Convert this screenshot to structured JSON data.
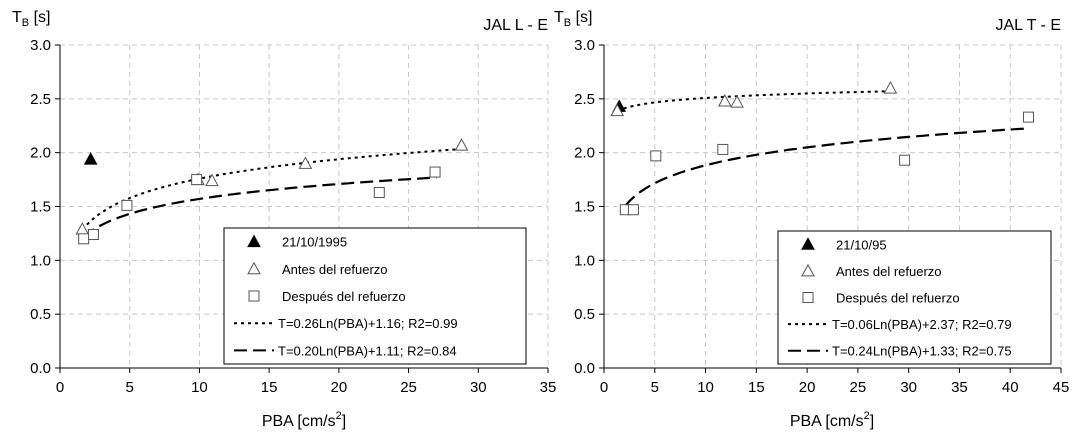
{
  "chart_data": [
    {
      "type": "scatter",
      "title": "JAL L - E",
      "ylabel_main": "T",
      "ylabel_sub": "B",
      "ylabel_unit": " [s]",
      "xlabel_main": "PBA [cm/s",
      "xlabel_sup": "2",
      "xlabel_end": "]",
      "xlim": [
        0,
        35
      ],
      "ylim": [
        0,
        3
      ],
      "xticks": [
        "0",
        "5",
        "10",
        "15",
        "20",
        "25",
        "30",
        "35"
      ],
      "yticks": [
        "0.0",
        "0.5",
        "1.0",
        "1.5",
        "2.0",
        "2.5",
        "3.0"
      ],
      "grid": true,
      "legend_position": "bottom-right",
      "series": [
        {
          "name": "21/10/1995",
          "marker": "filled-triangle",
          "points": [
            [
              2.2,
              1.94
            ]
          ]
        },
        {
          "name": "Antes del refuerzo",
          "marker": "open-triangle",
          "points": [
            [
              1.6,
              1.29
            ],
            [
              9.9,
              1.75
            ],
            [
              10.9,
              1.74
            ],
            [
              17.6,
              1.9
            ],
            [
              28.8,
              2.07
            ]
          ]
        },
        {
          "name": "Después del refuerzo",
          "marker": "open-square",
          "points": [
            [
              1.7,
              1.2
            ],
            [
              2.4,
              1.24
            ],
            [
              4.8,
              1.51
            ],
            [
              9.8,
              1.75
            ],
            [
              22.9,
              1.63
            ],
            [
              26.9,
              1.82
            ]
          ]
        }
      ],
      "fits": [
        {
          "name": "T=0.26Ln(PBA)+1.16; R2=0.99",
          "a": 0.26,
          "b": 1.16,
          "xrange": [
            1.6,
            28.8
          ],
          "dash": "short"
        },
        {
          "name": "T=0.20Ln(PBA)+1.11; R2=0.84",
          "a": 0.2,
          "b": 1.11,
          "xrange": [
            1.7,
            27
          ],
          "dash": "long"
        }
      ]
    },
    {
      "type": "scatter",
      "title": "JAL T - E",
      "ylabel_main": "T",
      "ylabel_sub": "B",
      "ylabel_unit": " [s]",
      "xlabel_main": "PBA [cm/s",
      "xlabel_sup": "2",
      "xlabel_end": "]",
      "xlim": [
        0,
        45
      ],
      "ylim": [
        0,
        3
      ],
      "xticks": [
        "0",
        "5",
        "10",
        "15",
        "20",
        "25",
        "30",
        "35",
        "40",
        "45"
      ],
      "yticks": [
        "0.0",
        "0.5",
        "1.0",
        "1.5",
        "2.0",
        "2.5",
        "3.0"
      ],
      "grid": true,
      "legend_position": "bottom-right",
      "series": [
        {
          "name": "21/10/95",
          "marker": "filled-triangle",
          "points": [
            [
              1.5,
              2.43
            ]
          ]
        },
        {
          "name": "Antes del refuerzo",
          "marker": "open-triangle",
          "points": [
            [
              1.3,
              2.39
            ],
            [
              11.9,
              2.48
            ],
            [
              13.1,
              2.47
            ],
            [
              28.2,
              2.6
            ]
          ]
        },
        {
          "name": "Después del refuerzo",
          "marker": "open-square",
          "points": [
            [
              2.1,
              1.47
            ],
            [
              2.9,
              1.47
            ],
            [
              5.1,
              1.97
            ],
            [
              11.7,
              2.03
            ],
            [
              29.6,
              1.93
            ],
            [
              41.8,
              2.33
            ]
          ]
        }
      ],
      "fits": [
        {
          "name": "T=0.06Ln(PBA)+2.37; R2=0.79",
          "a": 0.06,
          "b": 2.37,
          "xrange": [
            1.3,
            28.2
          ],
          "dash": "short"
        },
        {
          "name": "T=0.24Ln(PBA)+1.33; R2=0.75",
          "a": 0.24,
          "b": 1.33,
          "xrange": [
            2.1,
            41.8
          ],
          "dash": "long"
        }
      ]
    }
  ]
}
